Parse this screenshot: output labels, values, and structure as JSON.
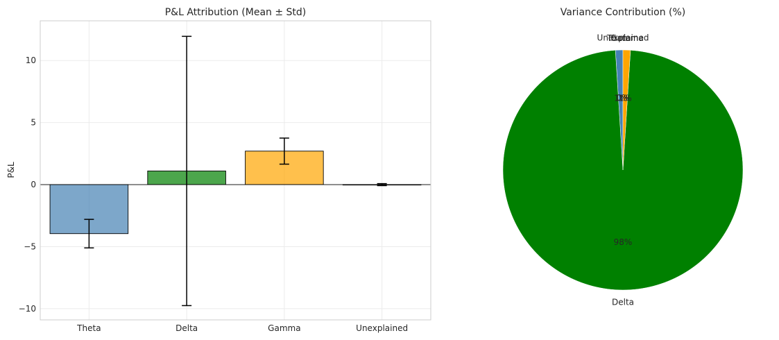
{
  "chart_data": [
    {
      "type": "bar",
      "title": "P&L Attribution (Mean ± Std)",
      "xlabel": "",
      "ylabel": "P&L",
      "categories": [
        "Theta",
        "Delta",
        "Gamma",
        "Unexplained"
      ],
      "values": [
        -3.95,
        1.1,
        2.7,
        0.0
      ],
      "errors": [
        1.15,
        10.85,
        1.05,
        0.08
      ],
      "colors": [
        "#4682b4",
        "#008000",
        "#ffa500",
        "#808080"
      ],
      "ylim": [
        -10.9,
        13.2
      ],
      "yticks": [
        -10,
        -5,
        0,
        5,
        10
      ],
      "grid": true
    },
    {
      "type": "pie",
      "title": "Variance Contribution (%)",
      "labels": [
        "Theta",
        "Delta",
        "Gamma",
        "Unexplained"
      ],
      "values": [
        1.0,
        98.0,
        1.0,
        0.0
      ],
      "pct_labels": [
        "1%",
        "98%",
        "1%",
        "0%"
      ],
      "colors": [
        "#4682b4",
        "#008000",
        "#ffa500",
        "#808080"
      ]
    }
  ]
}
